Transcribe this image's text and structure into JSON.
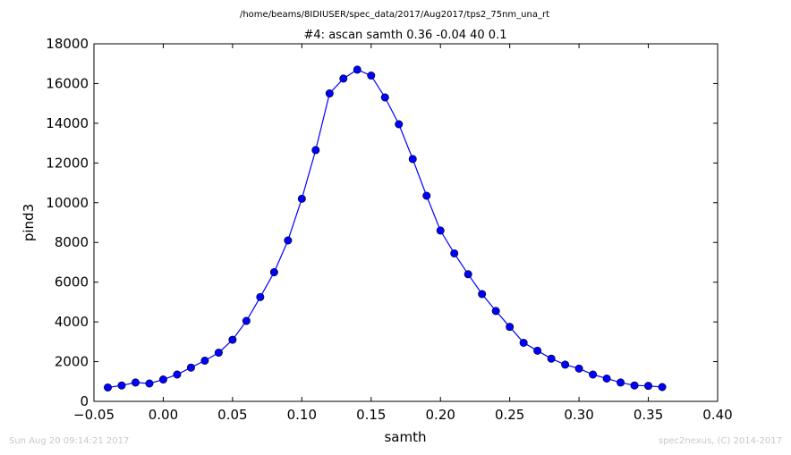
{
  "footer": {
    "left": "Sun Aug 20 09:14:21 2017",
    "right": "spec2nexus, (C) 2014-2017"
  },
  "chart_data": {
    "type": "line",
    "title": "#4: ascan  samth 0.36 -0.04  40 0.1",
    "subtitle": "/home/beams/8IDIUSER/spec_data/2017/Aug2017/tps2_75nm_una_rt",
    "xlabel": "samth",
    "ylabel": "pind3",
    "xlim": [
      -0.05,
      0.4
    ],
    "ylim": [
      0,
      18000
    ],
    "xticks": [
      -0.05,
      0.0,
      0.05,
      0.1,
      0.15,
      0.2,
      0.25,
      0.3,
      0.35,
      0.4
    ],
    "xtick_labels": [
      "−0.05",
      "0.00",
      "0.05",
      "0.10",
      "0.15",
      "0.20",
      "0.25",
      "0.30",
      "0.35",
      "0.40"
    ],
    "yticks": [
      0,
      2000,
      4000,
      6000,
      8000,
      10000,
      12000,
      14000,
      16000,
      18000
    ],
    "ytick_labels": [
      "0",
      "2000",
      "4000",
      "6000",
      "8000",
      "10000",
      "12000",
      "14000",
      "16000",
      "18000"
    ],
    "grid": false,
    "series_color": "#0000ff",
    "series": [
      {
        "x": [
          -0.04,
          -0.03,
          -0.02,
          -0.01,
          0.0,
          0.01,
          0.02,
          0.03,
          0.04,
          0.05,
          0.06,
          0.07,
          0.08,
          0.09,
          0.1,
          0.11,
          0.12,
          0.13,
          0.14,
          0.15,
          0.16,
          0.17,
          0.18,
          0.19,
          0.2,
          0.21,
          0.22,
          0.23,
          0.24,
          0.25,
          0.26,
          0.27,
          0.28,
          0.29,
          0.3,
          0.31,
          0.32,
          0.33,
          0.34,
          0.35,
          0.36
        ],
        "y": [
          700,
          800,
          950,
          900,
          1100,
          1350,
          1700,
          2050,
          2450,
          3100,
          4050,
          5250,
          6500,
          8100,
          10200,
          12650,
          15500,
          16250,
          16700,
          16400,
          15300,
          13950,
          12200,
          10350,
          8600,
          7450,
          6400,
          5400,
          4550,
          3750,
          2950,
          2550,
          2150,
          1850,
          1650,
          1350,
          1150,
          950,
          800,
          780,
          720
        ]
      }
    ]
  }
}
